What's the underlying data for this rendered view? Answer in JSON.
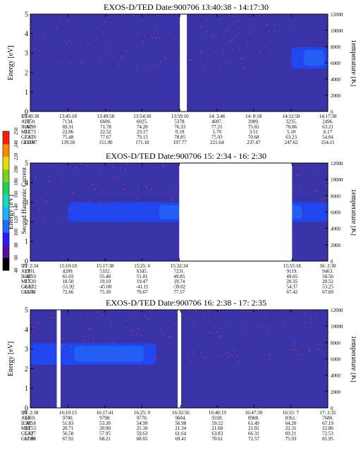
{
  "colors": {
    "background": "#3a33a8",
    "band": "#2046f0",
    "band_light": "#2a8cff",
    "speckle": "#ff3b30",
    "gap": "#ffffff",
    "colorbar": [
      "#000000",
      "#5a0aa0",
      "#2a1aff",
      "#1e6bff",
      "#19b3ff",
      "#14d8c0",
      "#1ed25a",
      "#7ad21e",
      "#e0e000",
      "#ff8a00",
      "#ff1e00"
    ]
  },
  "colorbar": {
    "label": "Second Harmonic Current",
    "ticks": [
      "40",
      "60",
      "80",
      "100",
      "120",
      "140",
      "160",
      "180",
      "200",
      "220",
      "240",
      "250"
    ]
  },
  "chart_data": [
    {
      "type": "heatmap",
      "title": "EXOS-D/TED   Date:900706   13:40:38 - 14:17:30",
      "ylabel": "Energy [eV]",
      "ylabel_right": "Temperature [K]",
      "ylim": [
        0,
        5
      ],
      "y_ticks": [
        "0",
        "1",
        "2",
        "3",
        "4",
        "5"
      ],
      "ylim_right": [
        0,
        12000
      ],
      "y_ticks_right": [
        "0",
        "2000",
        "4000",
        "6000",
        "8000",
        "10000",
        "12000"
      ],
      "gaps": [
        {
          "from": "13:59:10",
          "to": "14:0:2"
        }
      ],
      "band": {
        "start": "14:12:58",
        "end": "14:17:30",
        "energy_low": 2.2,
        "energy_high": 3.3
      },
      "row_labels": [
        "UT",
        "ALT",
        "ILAT",
        "MLT",
        "GLAT",
        "GLON"
      ],
      "columns": [
        [
          "13:40:38",
          "7650.",
          "66.98",
          "21.73",
          "73.18",
          "132.07"
        ],
        [
          "13:45:18",
          "7134.",
          "69.31",
          "22.06",
          "75.48",
          "139.58"
        ],
        [
          "13:49:58",
          "6606.",
          "71.78",
          "22.52",
          "77.67",
          "151.90"
        ],
        [
          "13:54:30",
          "6025.",
          "74.20",
          "23.17",
          "79.13",
          "171.18"
        ],
        [
          "13:59:10",
          "5378.",
          "76.33",
          "0.19",
          "78.85",
          "197.77"
        ],
        [
          "14: 3:46",
          "4697.",
          "77.21",
          "1.70",
          "75.93",
          "221.64"
        ],
        [
          "14: 8:18",
          "3989.",
          "75.65",
          "3.51",
          "70.68",
          "237.47"
        ],
        [
          "14:12:58",
          "3235.",
          "70.86",
          "5.10",
          "63.23",
          "247.62"
        ],
        [
          "14:17:30",
          "2496.",
          "63.21",
          "6.17",
          "54.04",
          "254.11"
        ]
      ]
    },
    {
      "type": "heatmap",
      "title": "EXOS-D/TED   Date:900706   15: 2:34 - 16: 2:30",
      "ylabel": "Energy [eV]",
      "ylabel_right": "Temperature [K]",
      "ylim": [
        0,
        5
      ],
      "y_ticks": [
        "0",
        "1",
        "2",
        "3",
        "4",
        "5"
      ],
      "ylim_right": [
        0,
        12000
      ],
      "y_ticks_right": [
        "0",
        "2000",
        "4000",
        "6000",
        "8000",
        "10000",
        "12000"
      ],
      "gaps": [
        {
          "from": "15:32:34",
          "to": "15:55:18"
        }
      ],
      "band": {
        "start": "15:10:10",
        "end": "16: 2:30",
        "energy_low": 2.0,
        "energy_high": 3.0
      },
      "row_labels": [
        "UT",
        "ALT",
        "ILAT",
        "MLT",
        "GLAT",
        "GLON"
      ],
      "columns": [
        [
          "15: 2:34",
          "2991.",
          "68.10",
          "17.20",
          "-63.02",
          "65.52"
        ],
        [
          "15:10:10",
          "4209.",
          "61.03",
          "18.50",
          "-51.92",
          "72.66"
        ],
        [
          "15:17:38",
          "5332.",
          "55.40",
          "19.10",
          "-45.08",
          "75.30"
        ],
        [
          "15:25: 6",
          "6345.",
          "51.81",
          "19.47",
          "-41.11",
          "76.67"
        ],
        [
          "15:32:34",
          "7231.",
          "49.85",
          "19.74",
          "-39.02",
          "77.57"
        ],
        [
          "15:55:18",
          "9119.",
          "49.65",
          "20.35",
          "54.37",
          "67.42"
        ],
        [
          "16: 2:30",
          "9463.",
          "50.56",
          "20.52",
          "53.25",
          "67.69"
        ]
      ]
    },
    {
      "type": "heatmap",
      "title": "EXOS-D/TED   Date:900706   16: 2:38 - 17: 2:35",
      "ylabel": "Energy [eV]",
      "ylabel_right": "Temperature [K]",
      "ylim": [
        0,
        5
      ],
      "y_ticks": [
        "0",
        "1",
        "2",
        "3",
        "4",
        "5"
      ],
      "ylim_right": [
        0,
        12000
      ],
      "y_ticks_right": [
        "0",
        "2000",
        "4000",
        "6000",
        "8000",
        "10000",
        "12000"
      ],
      "gaps": [
        {
          "from": "16: 7:58",
          "to": "16: 8:44"
        },
        {
          "from": "16:32:20",
          "to": "16:33:2"
        }
      ],
      "band": {
        "start": "16: 2:38",
        "end": "16:28:0",
        "energy_low": 2.2,
        "energy_high": 3.3
      },
      "row_labels": [
        "UT",
        "ALT",
        "ILAT",
        "MLT",
        "GLAT",
        "GLON"
      ],
      "columns": [
        [
          "16: 2:38",
          "9469.",
          "50.58",
          "20.53",
          "53.27",
          "67.69"
        ],
        [
          "16:10:13",
          "9700.",
          "51.83",
          "20.71",
          "56.50",
          "67.92"
        ],
        [
          "16:17:41",
          "9798.",
          "53.30",
          "20.90",
          "57.95",
          "68.21"
        ],
        [
          "16:25: 9",
          "9770.",
          "54.99",
          "21.10",
          "59.63",
          "68.65"
        ],
        [
          "16:32:56",
          "9604.",
          "56.98",
          "21.34",
          "61.64",
          "69.41"
        ],
        [
          "16:40:19",
          "9318.",
          "59.12",
          "21.60",
          "63.83",
          "70.61"
        ],
        [
          "16:47:39",
          "8908.",
          "61.49",
          "21.91",
          "66.31",
          "72.57"
        ],
        [
          "16:55: 7",
          "8361.",
          "64.20",
          "22.31",
          "69.21",
          "75.93"
        ],
        [
          "17: 2:35",
          "7680.",
          "67.19",
          "22.86",
          "72.53",
          "81.95"
        ]
      ]
    }
  ]
}
